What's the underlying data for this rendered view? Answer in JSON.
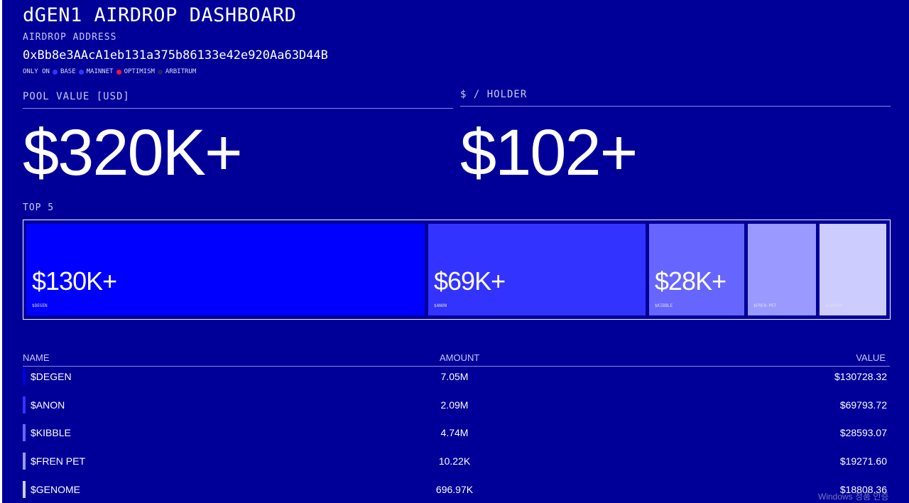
{
  "header": {
    "title": "dGEN1 AIRDROP DASHBOARD",
    "address_label": "AIRDROP ADDRESS",
    "address": "0xBb8e3AAcA1eb131a375b86133e42e920Aa63D44B",
    "chains_label": "ONLY ON",
    "chains": [
      {
        "name": "BASE",
        "color": "#3333ff"
      },
      {
        "name": "MAINNET",
        "color": "#3333ff"
      },
      {
        "name": "OPTIMISM",
        "color": "#ff1133"
      },
      {
        "name": "ARBITRUM",
        "color": "#222266"
      }
    ]
  },
  "stats": {
    "pool_label": "POOL VALUE [USD]",
    "pool_value": "$320K+",
    "holder_label": "$ / HOLDER",
    "holder_value": "$102+"
  },
  "top5": {
    "label": "TOP 5",
    "tiles": [
      {
        "value": "$130K+",
        "name": "$DEGEN",
        "color": "#0000ff"
      },
      {
        "value": "$69K+",
        "name": "$ANON",
        "color": "#3333ff"
      },
      {
        "value": "$28K+",
        "name": "$KIBBLE",
        "color": "#6666ff"
      },
      {
        "value": "",
        "name": "$FREN-PET",
        "color": "#9999ff"
      },
      {
        "value": "",
        "name": "$GENOME",
        "color": "#ccccff"
      }
    ]
  },
  "table": {
    "headers": {
      "name": "NAME",
      "amount": "AMOUNT",
      "value": "VALUE"
    },
    "rows": [
      {
        "name": "$DEGEN",
        "amount": "7.05M",
        "value": "$130728.32",
        "color": "#0000dd"
      },
      {
        "name": "$ANON",
        "amount": "2.09M",
        "value": "$69793.72",
        "color": "#3333ff"
      },
      {
        "name": "$KIBBLE",
        "amount": "4.74M",
        "value": "$28593.07",
        "color": "#6666ff"
      },
      {
        "name": "$FREN PET",
        "amount": "10.22K",
        "value": "$19271.60",
        "color": "#9999ff"
      },
      {
        "name": "$GENOME",
        "amount": "696.97K",
        "value": "$18808.36",
        "color": "#ccccff"
      }
    ]
  },
  "watermark": "Windows 정품 인증"
}
